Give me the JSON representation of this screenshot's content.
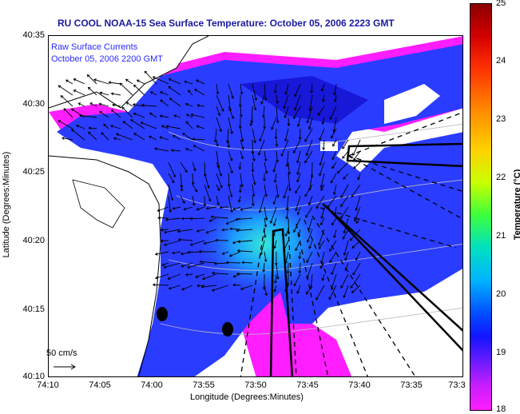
{
  "title": "RU COOL  NOAA-15  Sea Surface Temperature:  October 05, 2006 2223 GMT",
  "overlay_text": [
    "Raw Surface Currents",
    "October 05, 2006 2200 GMT"
  ],
  "scale_label": "50 cm/s",
  "axes": {
    "xlabel": "Longitude (Degrees:Minutes)",
    "ylabel": "Latitude (Degrees:Minutes)",
    "xticks": [
      "74:10",
      "74:05",
      "74:00",
      "73:55",
      "73:50",
      "73:45",
      "73:40",
      "73:35",
      "73:3"
    ],
    "yticks": [
      "40:35",
      "40:30",
      "40:25",
      "40:20",
      "40:15",
      "40:10"
    ]
  },
  "colorbar": {
    "label": "Temperature (°C)",
    "ticks": [
      "25",
      "24",
      "23",
      "22",
      "21",
      "20",
      "19",
      "18"
    ],
    "range": [
      18,
      25
    ]
  },
  "colors": {
    "title": "#1a1aa0",
    "water_sst": "#2a3cff",
    "warm_patch": "#00d4ff",
    "cold_edge": "#ff1eff",
    "land": "#ffffff"
  }
}
